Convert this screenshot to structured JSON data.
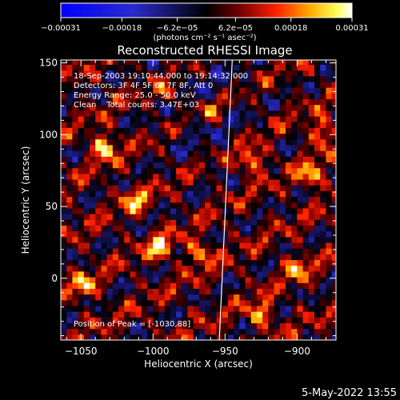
{
  "chart_data": {
    "type": "heatmap",
    "title": "Reconstructed RHESSI Image",
    "xlabel": "Heliocentric X (arcsec)",
    "ylabel": "Heliocentric Y (arcsec)",
    "xlim": [
      -1064,
      -873
    ],
    "ylim": [
      -43,
      152
    ],
    "x_ticks": [
      -1050,
      -1000,
      -950,
      -900
    ],
    "x_tick_labels": [
      "−1050",
      "−1000",
      "−950",
      "−900"
    ],
    "y_ticks": [
      0,
      50,
      100,
      150
    ],
    "y_tick_labels": [
      "0",
      "50",
      "100",
      "150"
    ],
    "colorbar": {
      "range": [
        -0.00031,
        0.00031
      ],
      "tick_values": [
        -0.00031,
        -0.00018,
        -6.2e-05,
        6.2e-05,
        0.00018,
        0.00031
      ],
      "tick_labels": [
        "−0.00031",
        "−0.00018",
        "−6.2e−05",
        "6.2e−05",
        "0.00018",
        "0.00031"
      ],
      "unit_label": "(photons cm⁻² s⁻¹ asec⁻²)",
      "colormap": "blue-black-red-yellow-white"
    },
    "annotations": [
      "18-Sep-2003 19:10:44.000 to 19:14:32.000",
      "Detectors: 3F 4F 5F 6F 7F 8F, Att 0",
      "Energy Range: 25.0 - 50.0 keV",
      "Clean    Total counts: 3.47E+03"
    ],
    "peak_label": "Position of Peak = [-1030,88]",
    "limb_line": {
      "points": [
        [
          -945,
          152
        ],
        [
          -954,
          -43
        ]
      ]
    },
    "bright_sources": [
      {
        "x": -1034,
        "y": 92,
        "value": 0.00031
      },
      {
        "x": -995,
        "y": 22,
        "value": 0.00029
      },
      {
        "x": -932,
        "y": 82,
        "value": 0.00028
      },
      {
        "x": -890,
        "y": 72,
        "value": 0.00027
      },
      {
        "x": -882,
        "y": 102,
        "value": 0.00026
      },
      {
        "x": -925,
        "y": -25,
        "value": 0.00026
      },
      {
        "x": -968,
        "y": 18,
        "value": 0.00025
      },
      {
        "x": -1048,
        "y": -5,
        "value": 0.00024
      },
      {
        "x": -1012,
        "y": 55,
        "value": 0.00024
      },
      {
        "x": -900,
        "y": 8,
        "value": 0.00023
      },
      {
        "x": -960,
        "y": 118,
        "value": 0.00022
      },
      {
        "x": -988,
        "y": 128,
        "value": 0.00021
      }
    ]
  },
  "footer": {
    "date": "5-May-2022 13:55"
  }
}
